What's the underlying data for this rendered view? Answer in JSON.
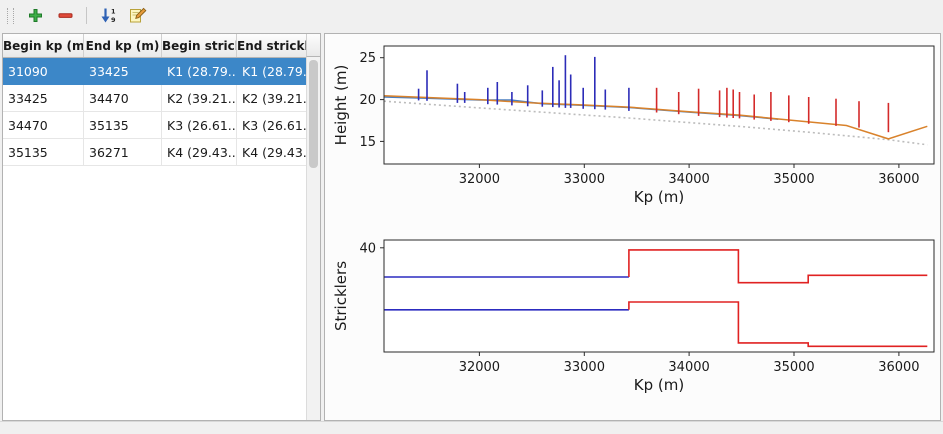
{
  "window": {
    "background": "#f0f0f0"
  },
  "toolbar": {
    "buttons": [
      {
        "name": "add-row",
        "icon": "plus-icon"
      },
      {
        "name": "remove-row",
        "icon": "minus-icon"
      },
      {
        "name": "sort-rows",
        "icon": "sort-numeric-icon"
      },
      {
        "name": "edit",
        "icon": "edit-icon"
      }
    ]
  },
  "table": {
    "headers": [
      "Begin kp (m)",
      "End kp (m)",
      "Begin strickler",
      "End strickler"
    ],
    "rows": [
      [
        "31090",
        "33425",
        "K1 (28.79...",
        "K1 (28.79..."
      ],
      [
        "33425",
        "34470",
        "K2 (39.21...",
        "K2 (39.21..."
      ],
      [
        "34470",
        "35135",
        "K3 (26.61...",
        "K3 (26.61..."
      ],
      [
        "35135",
        "36271",
        "K4 (29.43...",
        "K4 (29.43..."
      ]
    ],
    "selected_row": 0,
    "selection_bg": "#3c87c8",
    "selection_fg": "#ffffff"
  },
  "chart_data": [
    {
      "type": "line",
      "title": "",
      "xlabel": "Kp (m)",
      "ylabel": "Height (m)",
      "xlim": [
        31090,
        36335
      ],
      "ylim": [
        12.3,
        26.4
      ],
      "xticks": [
        32000,
        33000,
        34000,
        35000,
        36000
      ],
      "yticks": [
        15,
        20,
        25
      ],
      "grid": false,
      "legend": "none",
      "series": [
        {
          "name": "bed-profile-dotted",
          "type": "line",
          "color": "#bcbcbc",
          "dash": "2 3",
          "width": 1.6,
          "points": [
            [
              31090,
              19.8
            ],
            [
              32000,
              19.0
            ],
            [
              33000,
              18.15
            ],
            [
              33425,
              17.8
            ],
            [
              34000,
              17.25
            ],
            [
              34470,
              16.8
            ],
            [
              35135,
              16.1
            ],
            [
              35900,
              15.2
            ],
            [
              36271,
              14.6
            ]
          ]
        },
        {
          "name": "water-level-blue",
          "type": "line",
          "color": "#4a7fc0",
          "width": 1.5,
          "points": [
            [
              31090,
              20.3
            ],
            [
              31500,
              20.15
            ],
            [
              32000,
              19.95
            ],
            [
              32300,
              19.95
            ],
            [
              32600,
              19.5
            ],
            [
              33000,
              19.3
            ],
            [
              33425,
              19.05
            ],
            [
              34000,
              18.5
            ],
            [
              34470,
              18.1
            ],
            [
              34850,
              17.65
            ]
          ]
        },
        {
          "name": "bank-level-orange",
          "type": "line",
          "color": "#d9822b",
          "width": 1.5,
          "points": [
            [
              31090,
              20.45
            ],
            [
              31500,
              20.25
            ],
            [
              32000,
              20.0
            ],
            [
              32500,
              19.6
            ],
            [
              33000,
              19.35
            ],
            [
              33425,
              19.1
            ],
            [
              34000,
              18.55
            ],
            [
              34470,
              18.15
            ],
            [
              35000,
              17.5
            ],
            [
              35500,
              16.9
            ],
            [
              35900,
              15.3
            ],
            [
              36271,
              16.8
            ]
          ]
        },
        {
          "name": "cross-sections-selected-zone",
          "type": "vlines",
          "color": "#2c2cb8",
          "width": 1.6,
          "items": [
            [
              31420,
              19.9,
              21.3
            ],
            [
              31500,
              19.85,
              23.5
            ],
            [
              31790,
              19.6,
              21.9
            ],
            [
              31860,
              19.6,
              20.9
            ],
            [
              32080,
              19.45,
              21.4
            ],
            [
              32170,
              19.4,
              22.1
            ],
            [
              32310,
              19.3,
              20.9
            ],
            [
              32460,
              19.2,
              21.7
            ],
            [
              32600,
              19.15,
              21.1
            ],
            [
              32700,
              19.1,
              23.9
            ],
            [
              32760,
              19.05,
              22.3
            ],
            [
              32820,
              19.0,
              25.3
            ],
            [
              32870,
              19.0,
              23.0
            ],
            [
              32990,
              18.9,
              21.4
            ],
            [
              33100,
              18.85,
              25.1
            ],
            [
              33200,
              18.8,
              21.2
            ],
            [
              33425,
              18.65,
              21.4
            ]
          ]
        },
        {
          "name": "cross-sections-other-zones",
          "type": "vlines",
          "color": "#d42a2a",
          "width": 1.6,
          "items": [
            [
              33690,
              18.45,
              21.4
            ],
            [
              33900,
              18.25,
              20.9
            ],
            [
              34090,
              18.05,
              21.3
            ],
            [
              34290,
              17.9,
              21.1
            ],
            [
              34360,
              17.85,
              21.4
            ],
            [
              34420,
              17.8,
              21.2
            ],
            [
              34480,
              17.75,
              20.9
            ],
            [
              34620,
              17.6,
              20.6
            ],
            [
              34780,
              17.45,
              20.9
            ],
            [
              34950,
              17.3,
              20.5
            ],
            [
              35140,
              17.1,
              20.3
            ],
            [
              35400,
              16.85,
              20.1
            ],
            [
              35620,
              16.65,
              19.8
            ],
            [
              35900,
              16.1,
              19.6
            ]
          ]
        }
      ]
    },
    {
      "type": "step",
      "title": "",
      "xlabel": "Kp (m)",
      "ylabel": "Stricklers",
      "xlim": [
        31090,
        36335
      ],
      "ylim": [
        0,
        43
      ],
      "xticks": [
        32000,
        33000,
        34000,
        35000,
        36000
      ],
      "yticks": [
        40
      ],
      "grid": false,
      "legend": "none",
      "series": [
        {
          "name": "major-strickler-selected-zone",
          "type": "line",
          "color": "#2c2cc0",
          "width": 1.6,
          "points": [
            [
              31090,
              28.79
            ],
            [
              33425,
              28.79
            ]
          ]
        },
        {
          "name": "major-strickler-other-zones",
          "type": "line",
          "color": "#e02222",
          "width": 1.6,
          "points": [
            [
              33425,
              28.79
            ],
            [
              33425,
              39.21
            ],
            [
              34470,
              39.21
            ],
            [
              34470,
              26.61
            ],
            [
              35135,
              26.61
            ],
            [
              35135,
              29.43
            ],
            [
              36271,
              29.43
            ]
          ]
        },
        {
          "name": "minor-strickler-selected-zone",
          "type": "line",
          "color": "#2c2cc0",
          "width": 1.6,
          "points": [
            [
              31090,
              16.2
            ],
            [
              33425,
              16.2
            ]
          ]
        },
        {
          "name": "minor-strickler-other-zones",
          "type": "line",
          "color": "#e02222",
          "width": 1.6,
          "points": [
            [
              33425,
              16.2
            ],
            [
              33425,
              19.2
            ],
            [
              34470,
              19.2
            ],
            [
              34470,
              3.5
            ],
            [
              35135,
              3.5
            ],
            [
              35135,
              2.2
            ],
            [
              36271,
              2.2
            ]
          ]
        }
      ]
    }
  ]
}
